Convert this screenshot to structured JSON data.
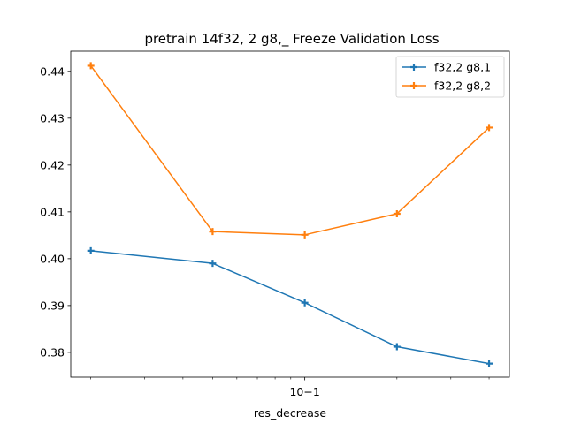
{
  "chart_data": {
    "type": "line",
    "title": "pretrain 14f32, 2 g8,_ Freeze Validation Loss",
    "xlabel": "res_decrease",
    "ylabel": "",
    "xscale": "log",
    "x": [
      0.02,
      0.05,
      0.1,
      0.2,
      0.4
    ],
    "xlim": [
      0.0172,
      0.466
    ],
    "ylim": [
      0.3747,
      0.4443
    ],
    "x_major_ticks": [
      {
        "value": 0.1,
        "label": "10−1"
      }
    ],
    "x_minor_ticks": [
      0.02,
      0.03,
      0.04,
      0.05,
      0.06,
      0.07,
      0.08,
      0.09,
      0.2,
      0.3,
      0.4
    ],
    "y_ticks": [
      {
        "value": 0.38,
        "label": "0.38"
      },
      {
        "value": 0.39,
        "label": "0.39"
      },
      {
        "value": 0.4,
        "label": "0.40"
      },
      {
        "value": 0.41,
        "label": "0.41"
      },
      {
        "value": 0.42,
        "label": "0.42"
      },
      {
        "value": 0.43,
        "label": "0.43"
      },
      {
        "value": 0.44,
        "label": "0.44"
      }
    ],
    "series": [
      {
        "name": "f32,2 g8,1",
        "color": "#1f77b4",
        "marker": "plus",
        "values": [
          0.4017,
          0.399,
          0.3906,
          0.3812,
          0.3776
        ]
      },
      {
        "name": "f32,2 g8,2",
        "color": "#ff7f0e",
        "marker": "plus",
        "values": [
          0.4412,
          0.4058,
          0.4051,
          0.4096,
          0.428
        ]
      }
    ],
    "legend": "top-right",
    "grid": false
  }
}
